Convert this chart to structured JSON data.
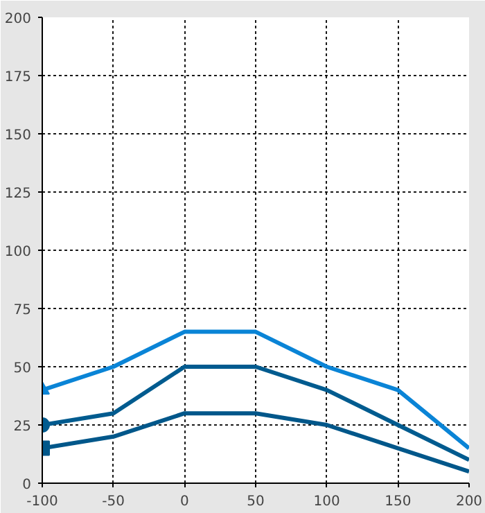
{
  "chart_data": {
    "type": "line",
    "x": [
      -100,
      -50,
      0,
      50,
      100,
      150,
      200
    ],
    "series": [
      {
        "color": "#0a84d6",
        "values": [
          40,
          50,
          65,
          65,
          50,
          40,
          15
        ]
      },
      {
        "color": "#005b8f",
        "values": [
          25,
          30,
          50,
          50,
          40,
          25,
          10
        ]
      },
      {
        "color": "#00578a",
        "values": [
          15,
          20,
          30,
          30,
          25,
          15,
          5
        ]
      }
    ],
    "xlim": [
      -100,
      200
    ],
    "ylim": [
      0,
      200
    ],
    "xticks": [
      -100,
      -50,
      0,
      50,
      100,
      150,
      200
    ],
    "yticks": [
      0,
      25,
      50,
      75,
      100,
      125,
      150,
      175,
      200
    ],
    "grid": true,
    "line_style": "solid"
  }
}
